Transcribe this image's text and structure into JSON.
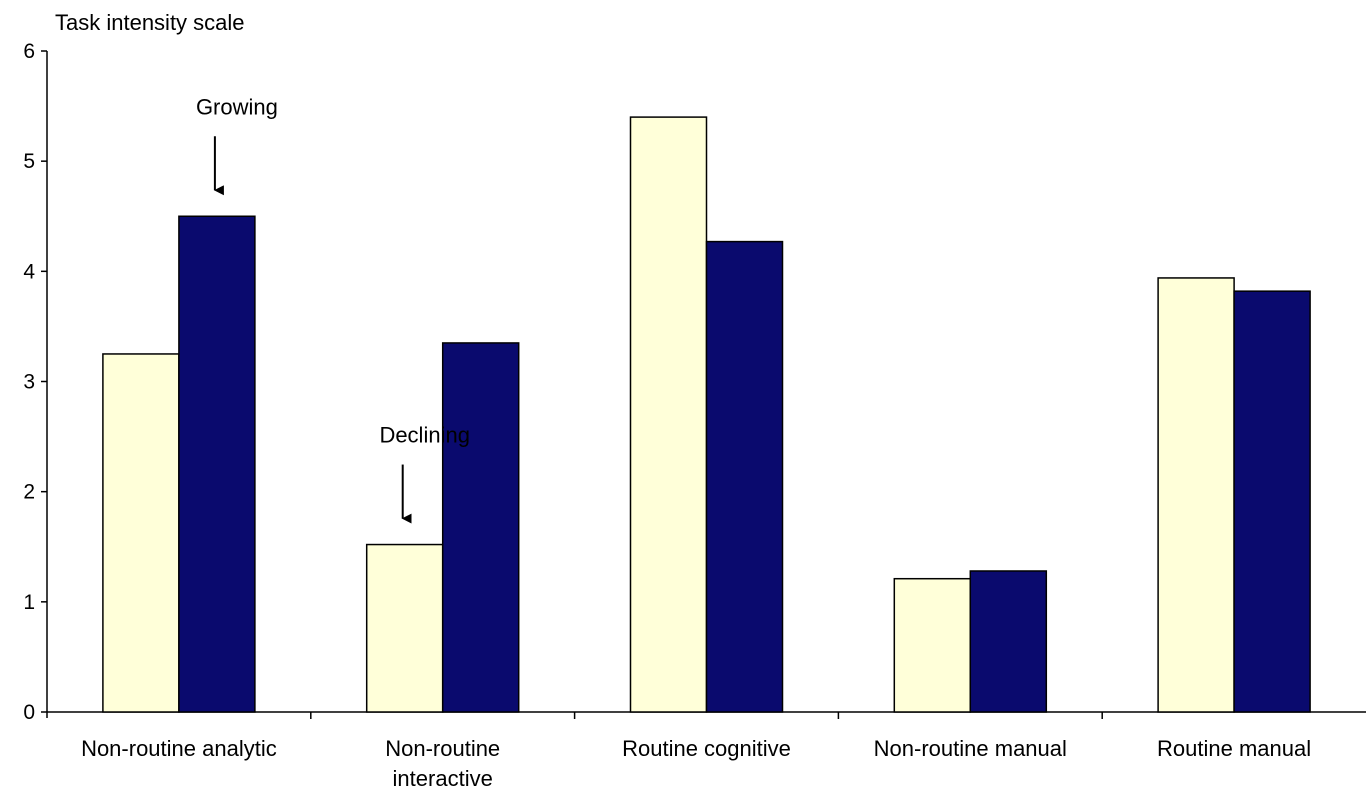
{
  "chart_data": {
    "type": "bar",
    "ylabel": "Task intensity scale",
    "xlabel": "",
    "ylim": [
      0,
      6
    ],
    "yticks": [
      "0",
      "1",
      "2",
      "3",
      "4",
      "5",
      "6"
    ],
    "categories": [
      [
        "Non-routine analytic"
      ],
      [
        "Non-routine",
        "interactive"
      ],
      [
        "Routine cognitive"
      ],
      [
        "Non-routine manual"
      ],
      [
        "Routine manual"
      ]
    ],
    "series": [
      {
        "color": "#ffffd9",
        "values": [
          3.25,
          1.52,
          5.4,
          1.21,
          3.94
        ]
      },
      {
        "color": "#0a0a6e",
        "values": [
          4.5,
          3.35,
          4.27,
          1.28,
          3.82
        ]
      }
    ],
    "annotations": [
      {
        "text": "Growing",
        "category_index": 0,
        "series_index": 1
      },
      {
        "text": "Declining",
        "category_index": 1,
        "series_index": 0
      }
    ],
    "grid": false,
    "legend": "none"
  }
}
